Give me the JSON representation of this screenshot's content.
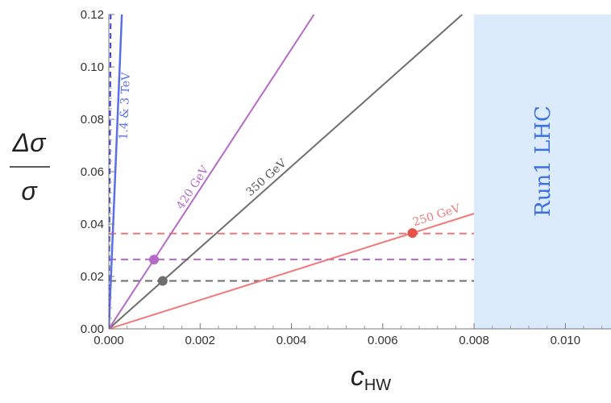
{
  "chart_data": {
    "type": "line",
    "xlabel": "c",
    "xlabel_sub": "HW",
    "ylabel_num": "Δσ",
    "ylabel_den": "σ",
    "xlim": [
      0,
      0.011
    ],
    "ylim": [
      0,
      0.12
    ],
    "x_ticks": [
      0,
      0.002,
      0.004,
      0.006,
      0.008,
      0.01
    ],
    "x_tick_labels": [
      "0.000",
      "0.002",
      "0.004",
      "0.006",
      "0.008",
      "0.010"
    ],
    "y_ticks": [
      0,
      0.02,
      0.04,
      0.06,
      0.08,
      0.1,
      0.12
    ],
    "y_tick_labels": [
      "0.00",
      "0.02",
      "0.04",
      "0.06",
      "0.08",
      "0.10",
      "0.12"
    ],
    "grid": false,
    "shaded_region": {
      "x_from": 0.008,
      "x_to": 0.011,
      "label": "Run1 LHC",
      "color": "#dcebfb"
    },
    "series": [
      {
        "name": "250 GeV",
        "color": "#f07a78",
        "slope": 5.5,
        "sensitivity": 0.0364,
        "point_x": 0.00665
      },
      {
        "name": "350 GeV",
        "color": "#6e6e6e",
        "slope": 15.5,
        "sensitivity": 0.0183,
        "point_x": 0.00118
      },
      {
        "name": "420 GeV",
        "color": "#b569c8",
        "slope": 26.7,
        "sensitivity": 0.0265,
        "point_x": 0.00099
      },
      {
        "name": "1.4 & 3 TeV",
        "color": "#5a6ee8",
        "slope": 420,
        "sensitivity": null,
        "point_x": null
      }
    ],
    "extra_lines": [
      {
        "color": "#3a3ad8",
        "slope": 3000,
        "dashed": true
      }
    ]
  }
}
